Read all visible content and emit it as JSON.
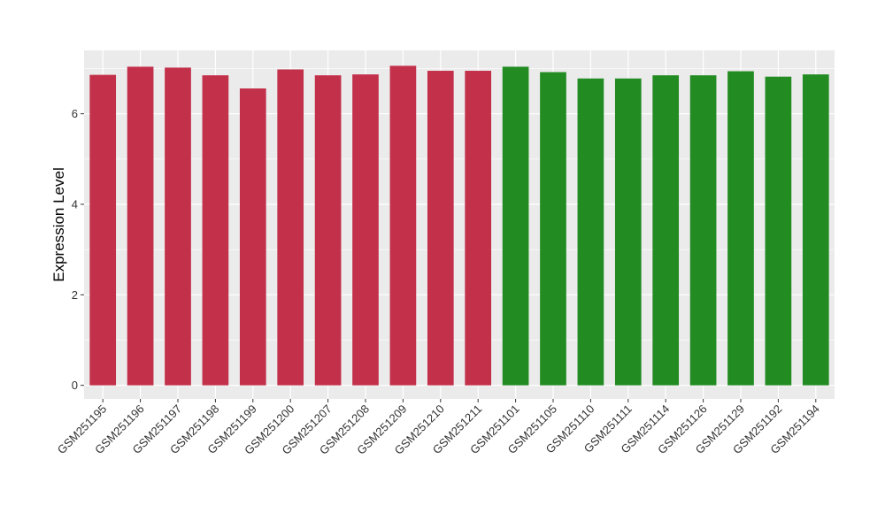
{
  "chart_data": {
    "type": "bar",
    "title": "",
    "xlabel": "",
    "ylabel": "Expression Level",
    "ylim": [
      -0.3,
      7.4
    ],
    "yticks": [
      0,
      2,
      4,
      6
    ],
    "grid": true,
    "legend": "none",
    "categories": [
      "GSM251195",
      "GSM251196",
      "GSM251197",
      "GSM251198",
      "GSM251199",
      "GSM251200",
      "GSM251207",
      "GSM251208",
      "GSM251209",
      "GSM251210",
      "GSM251211",
      "GSM251101",
      "GSM251105",
      "GSM251110",
      "GSM251111",
      "GSM251114",
      "GSM251126",
      "GSM251129",
      "GSM251192",
      "GSM251194"
    ],
    "values": [
      6.86,
      7.04,
      7.02,
      6.85,
      6.56,
      6.98,
      6.85,
      6.87,
      7.06,
      6.95,
      6.95,
      7.04,
      6.92,
      6.78,
      6.78,
      6.85,
      6.85,
      6.94,
      6.82,
      6.87
    ],
    "groups": [
      "red",
      "red",
      "red",
      "red",
      "red",
      "red",
      "red",
      "red",
      "red",
      "red",
      "red",
      "green",
      "green",
      "green",
      "green",
      "green",
      "green",
      "green",
      "green",
      "green"
    ],
    "colors": {
      "red": "#C3304A",
      "green": "#228B22",
      "panel": "#EBEBEB",
      "grid": "#FFFFFF"
    }
  }
}
